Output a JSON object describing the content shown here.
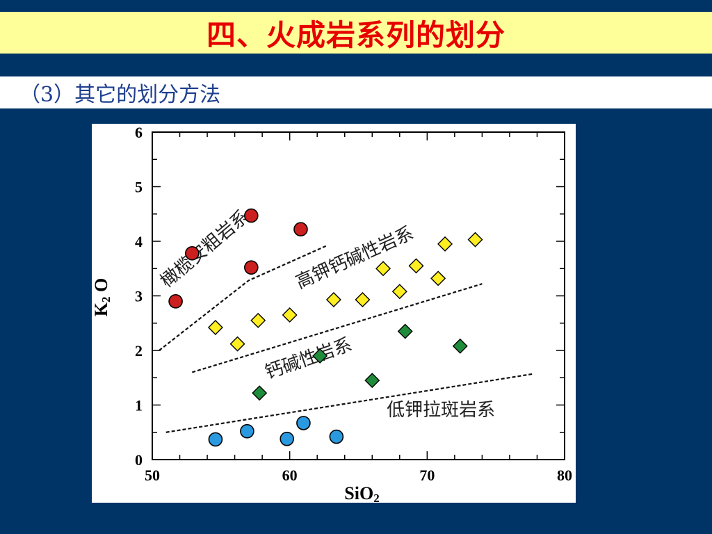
{
  "slide": {
    "title": "四、火成岩系列的划分",
    "subtitle": "（3）其它的划分方法"
  },
  "colors": {
    "background": "#003366",
    "title_bar": "#ffff99",
    "title_text": "#e60000",
    "subtitle_text": "#1f3f8f",
    "shoshonitic": "#cc1f1f",
    "high_k_calc_alkaline": "#ffee22",
    "calc_alkaline": "#1e8c3a",
    "low_k_tholeiitic": "#2a9ae0"
  },
  "chart_data": {
    "type": "scatter",
    "xlabel": "SiO2",
    "ylabel": "K2 O",
    "xlim": [
      50,
      80
    ],
    "ylim": [
      0,
      6
    ],
    "x_ticks": [
      "50",
      "60",
      "70",
      "80"
    ],
    "y_ticks": [
      "0",
      "1",
      "2",
      "3",
      "4",
      "5",
      "6"
    ],
    "grid": false,
    "series": [
      {
        "name": "橄榄安粗岩系",
        "marker": "circle",
        "color": "#cc1f1f",
        "points": [
          [
            51.7,
            2.9
          ],
          [
            52.9,
            3.78
          ],
          [
            57.2,
            4.47
          ],
          [
            57.2,
            3.52
          ],
          [
            60.8,
            4.22
          ]
        ]
      },
      {
        "name": "高钾钙碱性岩系",
        "marker": "diamond",
        "color": "#ffee22",
        "points": [
          [
            54.6,
            2.42
          ],
          [
            56.2,
            2.12
          ],
          [
            57.7,
            2.55
          ],
          [
            60.0,
            2.65
          ],
          [
            63.2,
            2.93
          ],
          [
            65.3,
            2.93
          ],
          [
            66.8,
            3.5
          ],
          [
            68.0,
            3.08
          ],
          [
            69.2,
            3.55
          ],
          [
            70.8,
            3.32
          ],
          [
            71.3,
            3.95
          ],
          [
            73.5,
            4.03
          ]
        ]
      },
      {
        "name": "钙碱性岩系",
        "marker": "diamond",
        "color": "#1e8c3a",
        "points": [
          [
            57.8,
            1.22
          ],
          [
            62.2,
            1.9
          ],
          [
            66.0,
            1.45
          ],
          [
            68.4,
            2.35
          ],
          [
            72.4,
            2.08
          ]
        ]
      },
      {
        "name": "低钾拉斑岩系",
        "marker": "circle",
        "color": "#2a9ae0",
        "points": [
          [
            54.6,
            0.37
          ],
          [
            56.9,
            0.52
          ],
          [
            59.8,
            0.38
          ],
          [
            61.0,
            0.67
          ],
          [
            63.4,
            0.42
          ]
        ]
      }
    ],
    "boundaries": [
      [
        [
          50.5,
          2.0
        ],
        [
          57.0,
          3.28
        ],
        [
          62.7,
          3.92
        ]
      ],
      [
        [
          52.9,
          1.6
        ],
        [
          74.0,
          3.22
        ]
      ],
      [
        [
          51.0,
          0.5
        ],
        [
          77.7,
          1.57
        ]
      ]
    ],
    "annotations": [
      "橄榄安粗岩系",
      "高钾钙碱性岩系",
      "钙碱性岩系",
      "低钾拉斑岩系"
    ]
  }
}
